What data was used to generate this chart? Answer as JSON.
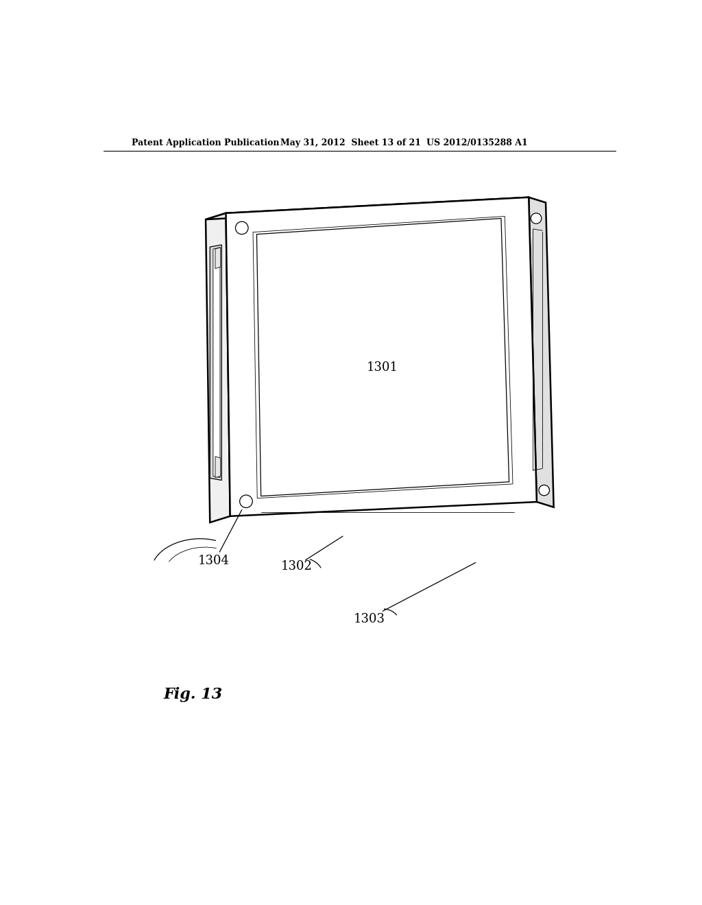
{
  "background_color": "#ffffff",
  "header_left": "Patent Application Publication",
  "header_center": "May 31, 2012  Sheet 13 of 21",
  "header_right": "US 2012/0135288 A1",
  "figure_label": "Fig. 13",
  "label_1301": "1301",
  "label_1302": "1302",
  "label_1303": "1303",
  "label_1304": "1304",
  "line_color": "#000000",
  "lw_main": 1.8,
  "lw_thin": 0.9,
  "lw_extra_thin": 0.6
}
